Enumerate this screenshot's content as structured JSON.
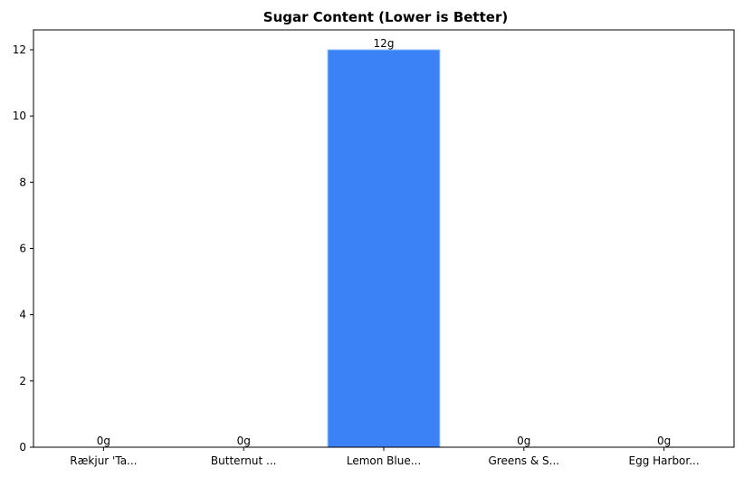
{
  "chart_data": {
    "type": "bar",
    "title": "Sugar Content (Lower is Better)",
    "xlabel": "",
    "ylabel": "",
    "categories": [
      "Rækjur 'Ta...",
      "Butternut ...",
      "Lemon Blue...",
      "Greens & S...",
      "Egg Harbor..."
    ],
    "values": [
      0,
      0,
      12,
      0,
      0
    ],
    "data_labels": [
      "0g",
      "0g",
      "12g",
      "0g",
      "0g"
    ],
    "yticks": [
      0,
      2,
      4,
      6,
      8,
      10,
      12
    ],
    "ylim": [
      0,
      12.6
    ],
    "grid": false,
    "bar_color": "#3b82f6",
    "bar_edge_color": "#93c5fd"
  }
}
